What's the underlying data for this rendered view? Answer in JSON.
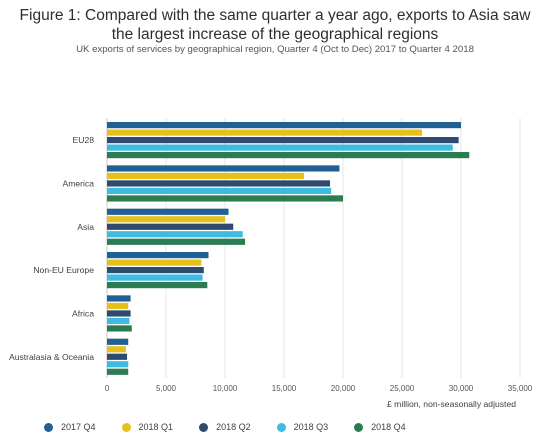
{
  "title_line1": "Figure 1: Compared with the same quarter a year ago, exports to Asia saw",
  "title_line2": "the largest increase of the geographical regions",
  "subtitle": "UK exports of services by geographical region, Quarter 4 (Oct to Dec) 2017 to Quarter 4 2018",
  "chart_data": {
    "type": "bar",
    "orientation": "horizontal",
    "categories": [
      "EU28",
      "America",
      "Asia",
      "Non-EU Europe",
      "Africa",
      "Australasia & Oceania"
    ],
    "series": [
      {
        "name": "2017 Q4",
        "color": "#206095",
        "values": [
          30000,
          19700,
          10300,
          8600,
          2000,
          1800
        ]
      },
      {
        "name": "2018 Q1",
        "color": "#e6c11c",
        "values": [
          26700,
          16700,
          10000,
          8000,
          1800,
          1600
        ]
      },
      {
        "name": "2018 Q2",
        "color": "#2e4a6e",
        "values": [
          29800,
          18900,
          10700,
          8200,
          2000,
          1700
        ]
      },
      {
        "name": "2018 Q3",
        "color": "#3ebbe0",
        "values": [
          29300,
          19000,
          11500,
          8100,
          1900,
          1800
        ]
      },
      {
        "name": "2018 Q4",
        "color": "#2b7c52",
        "values": [
          30700,
          20000,
          11700,
          8500,
          2100,
          1800
        ]
      }
    ],
    "xlim": [
      0,
      35000
    ],
    "xticks": [
      0,
      5000,
      10000,
      15000,
      20000,
      25000,
      30000,
      35000
    ],
    "xtick_labels": [
      "0",
      "5,000",
      "10,000",
      "15,000",
      "20,000",
      "25,000",
      "30,000",
      "35,000"
    ],
    "xlabel": "£ million, non-seasonally adjusted",
    "grid": true,
    "legend_position": "bottom"
  }
}
